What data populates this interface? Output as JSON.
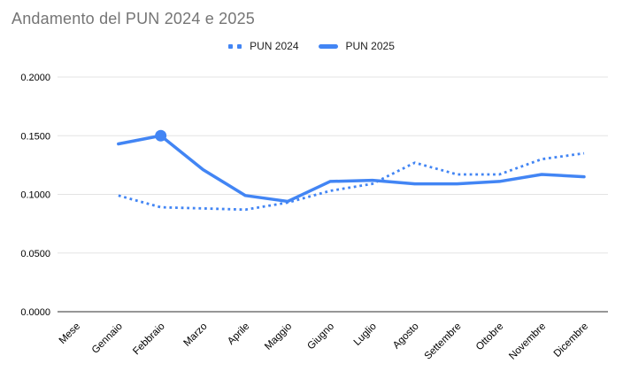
{
  "chart_data": {
    "type": "line",
    "title": "Andamento del PUN 2024 e 2025",
    "categories": [
      "Mese",
      "Gennaio",
      "Febbraio",
      "Marzo",
      "Aprile",
      "Maggio",
      "Giugno",
      "Luglio",
      "Agosto",
      "Settembre",
      "Ottobre",
      "Novembre",
      "Dicembre"
    ],
    "series": [
      {
        "name": "PUN 2024",
        "style": "dotted",
        "values": [
          null,
          0.099,
          0.089,
          0.088,
          0.087,
          0.093,
          0.103,
          0.109,
          0.127,
          0.117,
          0.117,
          0.13,
          0.135
        ]
      },
      {
        "name": "PUN 2025",
        "style": "solid",
        "values": [
          null,
          0.143,
          0.15,
          0.121,
          0.099,
          0.094,
          0.111,
          0.112,
          0.109,
          0.109,
          0.111,
          0.117,
          0.115
        ]
      }
    ],
    "highlight_point": {
      "series_index": 1,
      "category_index": 2,
      "value": 0.15
    },
    "ylim": [
      0,
      0.2
    ],
    "yticks": [
      "0.0000",
      "0.0500",
      "0.1000",
      "0.1500",
      "0.2000"
    ],
    "xlabel": "",
    "ylabel": "",
    "legend_position": "top",
    "grid": "horizontal",
    "colors": {
      "series": "#4285f4",
      "grid": "#e3e3e3",
      "baseline": "#757575",
      "title": "#757575",
      "axis_text": "#000000",
      "legend_text": "#1f1f1f"
    }
  }
}
